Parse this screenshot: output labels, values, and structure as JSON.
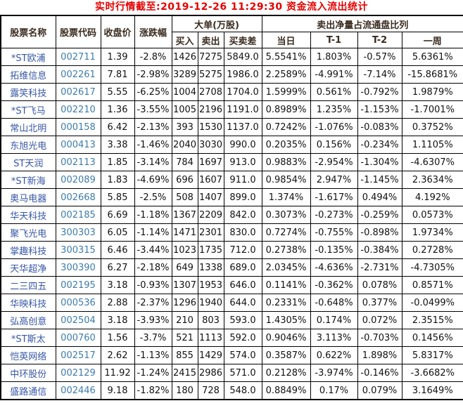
{
  "title": "实时行情截至:2019-12-26 11:29:30 资金流入流出统计",
  "colors": {
    "background": "#ffffff",
    "title": "#e60000",
    "header_text": "#3a2a1e",
    "stock_name": "#3656a6",
    "stock_code": "#3d7cab",
    "data_text": "#111111",
    "border": "#000000"
  },
  "table": {
    "headers": {
      "name": "股票名称",
      "code": "股票代码",
      "close": "收盘价",
      "change": "涨跌幅",
      "big_order_group": "大单(万股)",
      "buy": "买入",
      "sell": "卖出",
      "diff": "买卖差",
      "net_sell_group": "卖出净量占流通盘比列",
      "today": "当日",
      "t1": "T-1",
      "t2": "T-2",
      "week": "一周"
    },
    "rows": [
      {
        "name": "*ST欧浦",
        "code": "002711",
        "close": "1.39",
        "change": "-2.8%",
        "buy": "1426",
        "sell": "7275",
        "diff": "5849.0",
        "today": "5.5541%",
        "t1": "1.803%",
        "t2": "-0.57%",
        "week": "5.6361%"
      },
      {
        "name": "拓维信息",
        "code": "002261",
        "close": "7.81",
        "change": "-2.98%",
        "buy": "3289",
        "sell": "5275",
        "diff": "1986.0",
        "today": "2.2589%",
        "t1": "-4.991%",
        "t2": "-7.14%",
        "week": "-15.8681%"
      },
      {
        "name": "露笑科技",
        "code": "002617",
        "close": "5.55",
        "change": "-6.25%",
        "buy": "1004",
        "sell": "2708",
        "diff": "1704.0",
        "today": "1.5999%",
        "t1": "0.561%",
        "t2": "-0.792%",
        "week": "1.9879%"
      },
      {
        "name": "*ST飞马",
        "code": "002210",
        "close": "1.36",
        "change": "-3.55%",
        "buy": "1005",
        "sell": "2196",
        "diff": "1191.0",
        "today": "0.8989%",
        "t1": "1.235%",
        "t2": "-1.153%",
        "week": "-1.7001%"
      },
      {
        "name": "常山北明",
        "code": "000158",
        "close": "6.42",
        "change": "-2.13%",
        "buy": "393",
        "sell": "1530",
        "diff": "1137.0",
        "today": "0.7242%",
        "t1": "-1.076%",
        "t2": "-0.083%",
        "week": "0.3752%"
      },
      {
        "name": "东旭光电",
        "code": "000413",
        "close": "3.38",
        "change": "-1.46%",
        "buy": "2040",
        "sell": "3030",
        "diff": "990.0",
        "today": "0.2035%",
        "t1": "0.156%",
        "t2": "-0.234%",
        "week": "1.1105%"
      },
      {
        "name": "ST天润",
        "code": "002113",
        "close": "1.85",
        "change": "-3.14%",
        "buy": "784",
        "sell": "1697",
        "diff": "913.0",
        "today": "0.9883%",
        "t1": "-2.954%",
        "t2": "-1.304%",
        "week": "-4.6307%"
      },
      {
        "name": "*ST新海",
        "code": "002089",
        "close": "1.83",
        "change": "-4.69%",
        "buy": "696",
        "sell": "1607",
        "diff": "911.0",
        "today": "0.9854%",
        "t1": "2.947%",
        "t2": "-1.145%",
        "week": "2.3634%"
      },
      {
        "name": "奥马电器",
        "code": "002668",
        "close": "5.85",
        "change": "-2.5%",
        "buy": "508",
        "sell": "1407",
        "diff": "899.0",
        "today": "1.374%",
        "t1": "-1.617%",
        "t2": "0.494%",
        "week": "4.192%"
      },
      {
        "name": "华天科技",
        "code": "002185",
        "close": "6.69",
        "change": "-1.18%",
        "buy": "1367",
        "sell": "2209",
        "diff": "842.0",
        "today": "0.3073%",
        "t1": "-0.273%",
        "t2": "-0.259%",
        "week": "0.0573%"
      },
      {
        "name": "聚飞光电",
        "code": "300303",
        "close": "6.05",
        "change": "-1.14%",
        "buy": "1471",
        "sell": "2301",
        "diff": "830.0",
        "today": "0.7274%",
        "t1": "-0.755%",
        "t2": "-0.898%",
        "week": "1.9734%"
      },
      {
        "name": "掌趣科技",
        "code": "300315",
        "close": "6.46",
        "change": "-3.44%",
        "buy": "1023",
        "sell": "1735",
        "diff": "712.0",
        "today": "0.2738%",
        "t1": "-0.135%",
        "t2": "-0.384%",
        "week": "0.2728%"
      },
      {
        "name": "天华超净",
        "code": "300390",
        "close": "6.27",
        "change": "-2.18%",
        "buy": "649",
        "sell": "1338",
        "diff": "689.0",
        "today": "2.0345%",
        "t1": "-4.636%",
        "t2": "-2.731%",
        "week": "-4.7305%"
      },
      {
        "name": "二三四五",
        "code": "002195",
        "close": "3.18",
        "change": "-0.93%",
        "buy": "1307",
        "sell": "1953",
        "diff": "646.0",
        "today": "0.1141%",
        "t1": "-0.362%",
        "t2": "0.078%",
        "week": "0.8571%"
      },
      {
        "name": "华映科技",
        "code": "000536",
        "close": "2.88",
        "change": "-2.37%",
        "buy": "1296",
        "sell": "1940",
        "diff": "644.0",
        "today": "0.2331%",
        "t1": "-0.648%",
        "t2": "0.377%",
        "week": "-0.0499%"
      },
      {
        "name": "弘高创意",
        "code": "002504",
        "close": "3.18",
        "change": "-3.93%",
        "buy": "210",
        "sell": "803",
        "diff": "593.0",
        "today": "1.4305%",
        "t1": "0.174%",
        "t2": "0.072%",
        "week": "2.3515%"
      },
      {
        "name": "*ST斯太",
        "code": "000760",
        "close": "1.56",
        "change": "-3.7%",
        "buy": "521",
        "sell": "1113",
        "diff": "592.0",
        "today": "0.9046%",
        "t1": "3.113%",
        "t2": "-0.703%",
        "week": "0.1456%"
      },
      {
        "name": "恺英网络",
        "code": "002517",
        "close": "2.62",
        "change": "-1.13%",
        "buy": "855",
        "sell": "1429",
        "diff": "574.0",
        "today": "0.3587%",
        "t1": "0.622%",
        "t2": "1.898%",
        "week": "5.8317%"
      },
      {
        "name": "中环股份",
        "code": "002129",
        "close": "11.92",
        "change": "-1.24%",
        "buy": "2415",
        "sell": "2986",
        "diff": "571.0",
        "today": "0.2128%",
        "t1": "-3.974%",
        "t2": "-0.146%",
        "week": "-3.6682%"
      },
      {
        "name": "盛路通信",
        "code": "002446",
        "close": "9.18",
        "change": "-1.82%",
        "buy": "180",
        "sell": "728",
        "diff": "548.0",
        "today": "0.8849%",
        "t1": "0.17%",
        "t2": "0.079%",
        "week": "3.1649%"
      }
    ]
  }
}
